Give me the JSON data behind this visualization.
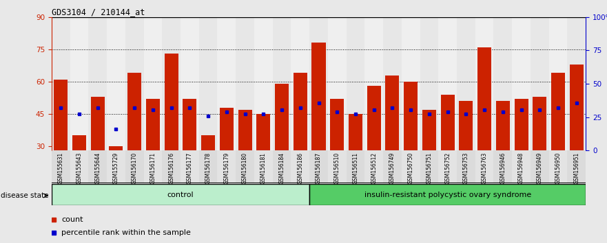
{
  "title": "GDS3104 / 210144_at",
  "samples": [
    "GSM155631",
    "GSM155643",
    "GSM155644",
    "GSM155729",
    "GSM156170",
    "GSM156171",
    "GSM156176",
    "GSM156177",
    "GSM156178",
    "GSM156179",
    "GSM156180",
    "GSM156181",
    "GSM156184",
    "GSM156186",
    "GSM156187",
    "GSM156510",
    "GSM156511",
    "GSM156512",
    "GSM156749",
    "GSM156750",
    "GSM156751",
    "GSM156752",
    "GSM156753",
    "GSM156763",
    "GSM156946",
    "GSM156948",
    "GSM156949",
    "GSM156950",
    "GSM156951"
  ],
  "bar_heights": [
    61,
    35,
    53,
    30,
    64,
    52,
    73,
    52,
    35,
    48,
    47,
    45,
    59,
    64,
    78,
    52,
    45,
    58,
    63,
    60,
    47,
    54,
    51,
    76,
    51,
    52,
    53,
    64,
    68
  ],
  "blue_dot_y": [
    48,
    45,
    48,
    38,
    48,
    47,
    48,
    48,
    44,
    46,
    45,
    45,
    47,
    48,
    50,
    46,
    45,
    47,
    48,
    47,
    45,
    46,
    45,
    47,
    46,
    47,
    47,
    48,
    50
  ],
  "n_control": 14,
  "group_labels": [
    "control",
    "insulin-resistant polycystic ovary syndrome"
  ],
  "ylim_left": [
    28,
    90
  ],
  "yticks_left": [
    30,
    45,
    60,
    75,
    90
  ],
  "ylim_right": [
    0,
    100
  ],
  "yticks_right": [
    0,
    25,
    50,
    75,
    100
  ],
  "bar_color": "#cc2200",
  "dot_color": "#0000cc",
  "bg_color": "#e8e8e8",
  "col_bg_even": "#d8d8d8",
  "col_bg_odd": "#e8e8e8",
  "plot_bg": "#ffffff",
  "control_bg": "#bbeecc",
  "insulin_bg": "#55cc66",
  "legend_count_label": "count",
  "legend_pct_label": "percentile rank within the sample"
}
